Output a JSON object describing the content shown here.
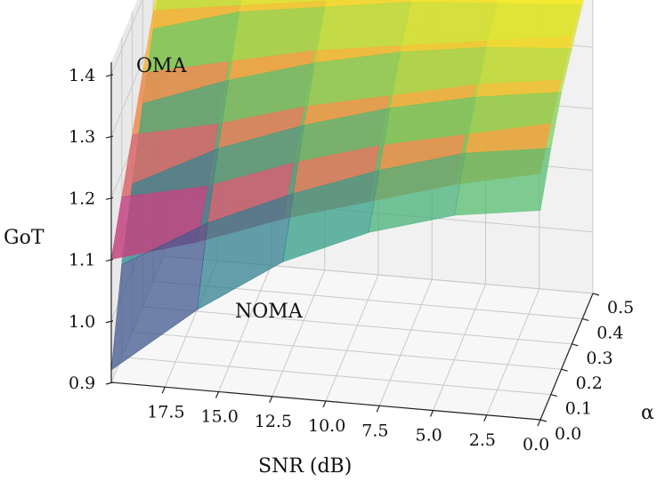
{
  "chart_data": {
    "type": "surface3d",
    "zlabel": "GoT",
    "xlabel": "SNR (dB)",
    "ylabel": "α",
    "x_ticks": [
      "17.5",
      "15.0",
      "12.5",
      "10.0",
      "7.5",
      "5.0",
      "2.5",
      "0.0"
    ],
    "y_ticks": [
      "0.0",
      "0.1",
      "0.2",
      "0.3",
      "0.4",
      "0.5"
    ],
    "z_ticks": [
      "0.9",
      "1.0",
      "1.1",
      "1.2",
      "1.3",
      "1.4"
    ],
    "xlim": [
      0,
      20
    ],
    "ylim": [
      0,
      0.5
    ],
    "zlim": [
      0.9,
      1.42
    ],
    "snr_values": [
      20,
      16,
      12,
      8,
      4,
      0
    ],
    "alpha_values": [
      0.0,
      0.1,
      0.2,
      0.3,
      0.4,
      0.5
    ],
    "series": [
      {
        "name": "OMA",
        "colormap": "plasma",
        "opacity": 0.82,
        "label_color": "#7a1f1f",
        "z": [
          [
            1.1,
            1.16,
            1.22,
            1.28,
            1.34,
            1.4
          ],
          [
            1.14,
            1.19,
            1.25,
            1.31,
            1.36,
            1.41
          ],
          [
            1.19,
            1.24,
            1.29,
            1.34,
            1.38,
            1.42
          ],
          [
            1.23,
            1.28,
            1.32,
            1.36,
            1.4,
            1.42
          ],
          [
            1.27,
            1.31,
            1.35,
            1.38,
            1.41,
            1.42
          ],
          [
            1.3,
            1.34,
            1.37,
            1.4,
            1.42,
            1.42
          ]
        ]
      },
      {
        "name": "NOMA",
        "colormap": "viridis",
        "opacity": 0.72,
        "label_color": "#22325a",
        "z": [
          [
            0.92,
            1.05,
            1.14,
            1.23,
            1.31,
            1.39
          ],
          [
            1.03,
            1.13,
            1.21,
            1.28,
            1.35,
            1.41
          ],
          [
            1.12,
            1.19,
            1.26,
            1.32,
            1.37,
            1.42
          ],
          [
            1.18,
            1.24,
            1.3,
            1.35,
            1.39,
            1.42
          ],
          [
            1.22,
            1.28,
            1.33,
            1.37,
            1.4,
            1.42
          ],
          [
            1.24,
            1.3,
            1.35,
            1.38,
            1.41,
            1.42
          ]
        ]
      }
    ]
  }
}
